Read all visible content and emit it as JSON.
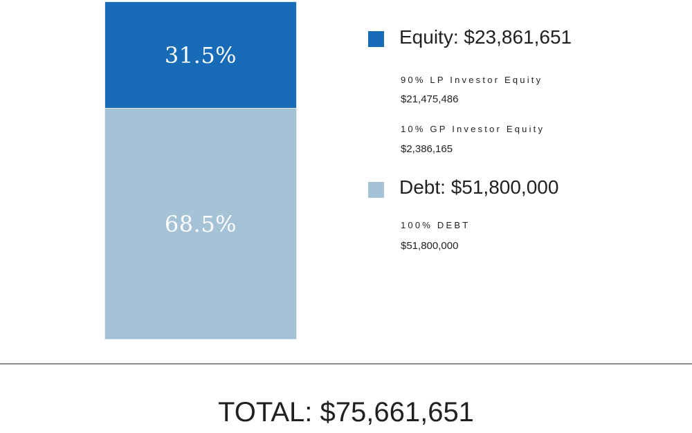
{
  "chart_data": {
    "type": "bar",
    "stacked": true,
    "categories": [
      ""
    ],
    "series": [
      {
        "name": "Equity",
        "value": 31.5,
        "label": "31.5%",
        "color": "#186bb7"
      },
      {
        "name": "Debt",
        "value": 68.5,
        "label": "68.5%",
        "color": "#a6c2d6"
      }
    ],
    "ylim": [
      0,
      100
    ],
    "grid": false,
    "legend_placement": "right"
  },
  "legend": {
    "equity": {
      "title": "Equity: $23,861,651",
      "color": "#186bb7",
      "items": [
        {
          "label": "90% LP Investor Equity",
          "value": "$21,475,486"
        },
        {
          "label": "10% GP Investor Equity",
          "value": "$2,386,165"
        }
      ]
    },
    "debt": {
      "title": "Debt: $51,800,000",
      "color": "#a6c2d6",
      "items": [
        {
          "label": "100% DEBT",
          "value": "$51,800,000"
        }
      ]
    }
  },
  "total": "TOTAL: $75,661,651"
}
